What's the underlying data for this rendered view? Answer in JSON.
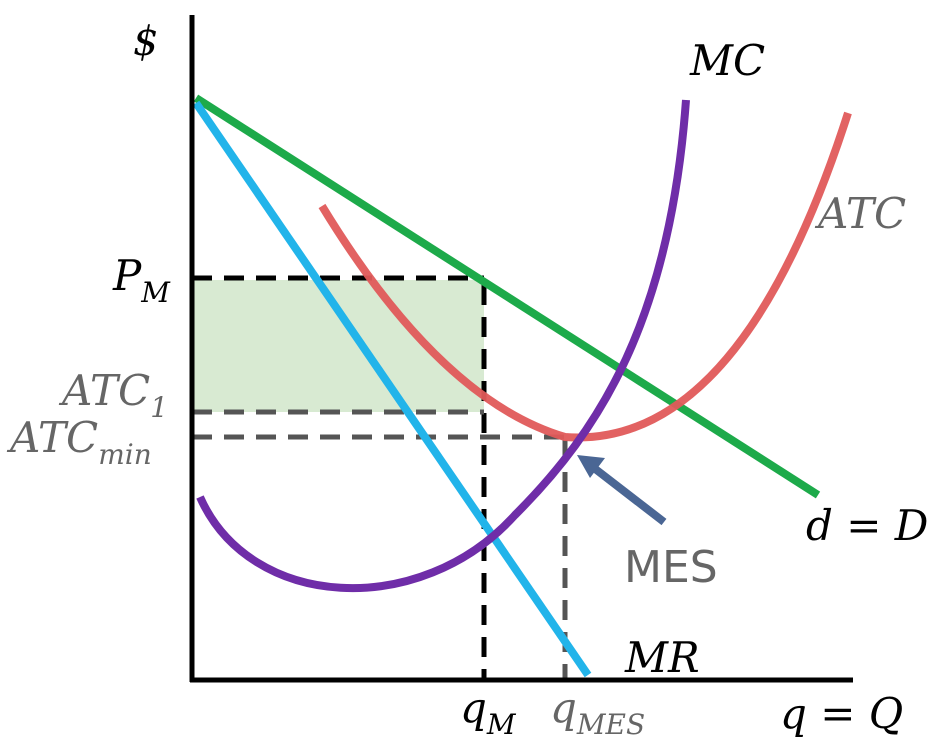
{
  "axes": {
    "y_label": "$",
    "x_label": "q = Q"
  },
  "price_labels": {
    "pm": {
      "base": "P",
      "sub": "M"
    },
    "atc1": {
      "base": "ATC",
      "sub": "1"
    },
    "atcmin": {
      "base": "ATC",
      "sub": "min"
    }
  },
  "quantity_labels": {
    "qm": {
      "base": "q",
      "sub": "M"
    },
    "qmes": {
      "base": "q",
      "sub": "MES"
    }
  },
  "curves": {
    "mc": "MC",
    "atc": "ATC",
    "demand": "d = D",
    "mr": "MR"
  },
  "annotation": {
    "mes": "MES"
  },
  "colors": {
    "mc": "#6f2da8",
    "atc": "#e05a5a",
    "demand": "#1daa4a",
    "mr": "#22b4ea",
    "profit_area": "#d8ead2",
    "guide_black": "#000000",
    "guide_gray": "#555555",
    "arrow": "#4a6694",
    "label_gray": "#666666"
  }
}
